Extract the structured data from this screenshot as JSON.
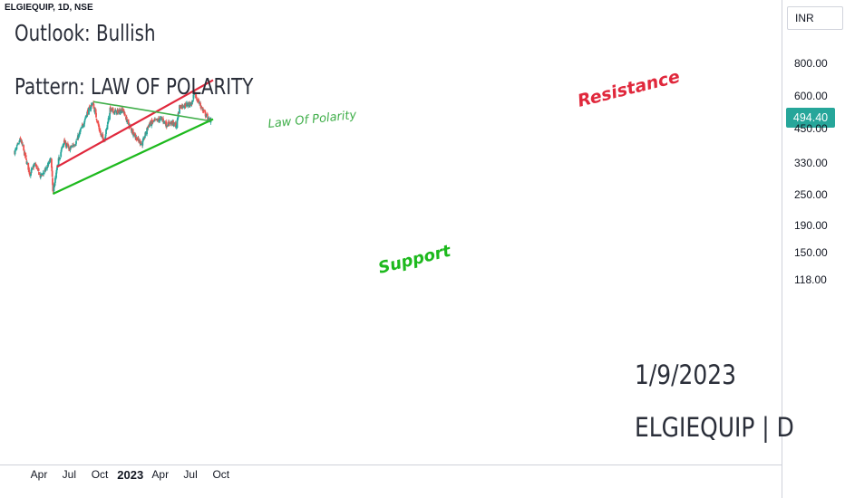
{
  "header": {
    "symbol_line": "ELGIEQUIP, 1D, NSE",
    "currency": "INR"
  },
  "annotations": {
    "outlook": "Outlook: Bullish",
    "pattern": "Pattern: LAW OF POLARITY",
    "date": "1/9/2023",
    "ticker": "ELGIEQUIP | D",
    "law_of_polarity_label": "Law Of Polarity",
    "resistance_label": "Resistance",
    "support_label": "Support"
  },
  "colors": {
    "up": "#26a69a",
    "down": "#ef5350",
    "support": "#1db91d",
    "resistance": "#e0283c",
    "polarity": "#3fae49",
    "last_price_bg": "#26a69a"
  },
  "chart_data": {
    "type": "candlestick",
    "title": "ELGIEQUIP, 1D, NSE",
    "y_scale": "log",
    "ylim": [
      116,
      950
    ],
    "y_ticks": [
      "800.00",
      "600.00",
      "450.00",
      "330.00",
      "250.00",
      "190.00",
      "150.00",
      "118.00"
    ],
    "x_ticks": [
      {
        "label": "Apr",
        "date": "2022-04"
      },
      {
        "label": "Jul",
        "date": "2022-07"
      },
      {
        "label": "Oct",
        "date": "2022-10"
      },
      {
        "label": "2023",
        "date": "2023-01"
      },
      {
        "label": "Apr",
        "date": "2023-04"
      },
      {
        "label": "Jul",
        "date": "2023-07"
      },
      {
        "label": "Oct",
        "date": "2023-10"
      }
    ],
    "last_price": "494.40",
    "close_path": [
      {
        "date": "2022-01-18",
        "close": 365
      },
      {
        "date": "2022-02-05",
        "close": 410
      },
      {
        "date": "2022-02-20",
        "close": 345
      },
      {
        "date": "2022-03-05",
        "close": 300
      },
      {
        "date": "2022-03-20",
        "close": 330
      },
      {
        "date": "2022-04-05",
        "close": 295
      },
      {
        "date": "2022-04-20",
        "close": 310
      },
      {
        "date": "2022-05-08",
        "close": 345
      },
      {
        "date": "2022-05-13",
        "close": 255
      },
      {
        "date": "2022-05-30",
        "close": 340
      },
      {
        "date": "2022-06-15",
        "close": 400
      },
      {
        "date": "2022-07-01",
        "close": 375
      },
      {
        "date": "2022-07-20",
        "close": 395
      },
      {
        "date": "2022-08-10",
        "close": 460
      },
      {
        "date": "2022-08-25",
        "close": 520
      },
      {
        "date": "2022-09-10",
        "close": 565
      },
      {
        "date": "2022-09-20",
        "close": 500
      },
      {
        "date": "2022-10-05",
        "close": 420
      },
      {
        "date": "2022-10-15",
        "close": 405
      },
      {
        "date": "2022-11-01",
        "close": 530
      },
      {
        "date": "2022-11-20",
        "close": 520
      },
      {
        "date": "2022-12-10",
        "close": 530
      },
      {
        "date": "2022-12-25",
        "close": 470
      },
      {
        "date": "2023-01-15",
        "close": 420
      },
      {
        "date": "2023-02-05",
        "close": 390
      },
      {
        "date": "2023-02-25",
        "close": 465
      },
      {
        "date": "2023-03-15",
        "close": 480
      },
      {
        "date": "2023-04-05",
        "close": 490
      },
      {
        "date": "2023-04-20",
        "close": 465
      },
      {
        "date": "2023-05-05",
        "close": 475
      },
      {
        "date": "2023-05-20",
        "close": 460
      },
      {
        "date": "2023-05-28",
        "close": 545
      },
      {
        "date": "2023-06-15",
        "close": 555
      },
      {
        "date": "2023-07-05",
        "close": 560
      },
      {
        "date": "2023-07-12",
        "close": 610
      },
      {
        "date": "2023-07-25",
        "close": 570
      },
      {
        "date": "2023-08-10",
        "close": 520
      },
      {
        "date": "2023-08-28",
        "close": 478
      },
      {
        "date": "2023-09-01",
        "close": 494.4
      }
    ],
    "trendlines": [
      {
        "name": "Support",
        "from": {
          "date": "2022-05-13",
          "price": 252
        },
        "to": {
          "date": "2023-09-07",
          "price": 488
        }
      },
      {
        "name": "Resistance",
        "from": {
          "date": "2022-05-25",
          "price": 320
        },
        "to": {
          "date": "2023-09-07",
          "price": 690
        }
      },
      {
        "name": "Law Of Polarity",
        "from": {
          "date": "2022-09-12",
          "price": 570
        },
        "to": {
          "date": "2023-09-01",
          "price": 480
        }
      }
    ]
  }
}
